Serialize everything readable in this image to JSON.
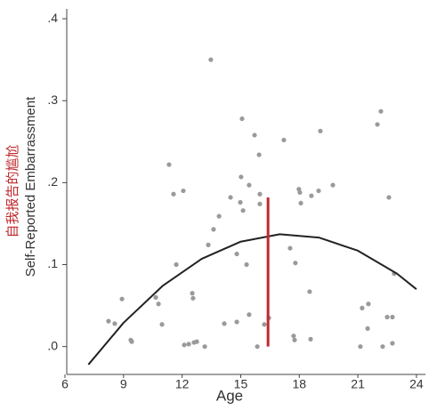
{
  "chart_data": {
    "type": "scatter",
    "x_label": "Age",
    "y_label": "Self-Reported Embarrassment",
    "annotation": "自我报告的尴尬",
    "color": "#9a9a9a",
    "x": [
      8.23,
      8.55,
      8.92,
      9.42,
      9.37,
      10.65,
      10.79,
      10.97,
      11.33,
      11.56,
      11.7,
      12.06,
      12.11,
      12.34,
      12.52,
      12.56,
      12.61,
      12.75,
      13.16,
      13.34,
      13.47,
      13.61,
      13.89,
      14.16,
      14.48,
      14.8,
      14.8,
      14.98,
      15.07,
      15.02,
      15.12,
      15.3,
      15.43,
      15.43,
      15.71,
      15.85,
      15.94,
      15.98,
      15.98,
      16.21,
      16.44,
      17.21,
      17.53,
      17.71,
      17.76,
      17.8,
      17.98,
      18.03,
      18.08,
      18.53,
      18.58,
      18.62,
      18.99,
      19.08,
      19.72,
      21.13,
      21.22,
      21.5,
      21.54,
      22.0,
      22.18,
      22.27,
      22.5,
      22.59,
      22.77,
      22.77,
      22.86
    ],
    "values": [
      0.031,
      0.028,
      0.058,
      0.006,
      0.008,
      0.06,
      0.052,
      0.027,
      0.222,
      0.186,
      0.1,
      0.19,
      0.002,
      0.003,
      0.065,
      0.059,
      0.005,
      0.006,
      0.0,
      0.124,
      0.35,
      0.143,
      0.159,
      0.028,
      0.182,
      0.03,
      0.113,
      0.176,
      0.278,
      0.207,
      0.166,
      0.1,
      0.197,
      0.039,
      0.258,
      0.0,
      0.234,
      0.186,
      0.174,
      0.027,
      0.035,
      0.252,
      0.12,
      0.013,
      0.008,
      0.102,
      0.192,
      0.188,
      0.175,
      0.067,
      0.009,
      0.184,
      0.19,
      0.263,
      0.197,
      0.0,
      0.047,
      0.022,
      0.052,
      0.271,
      0.287,
      0.0,
      0.036,
      0.182,
      0.036,
      0.004,
      0.089
    ],
    "fit": {
      "color": "#222222",
      "x": [
        7.2,
        9,
        11,
        13,
        15,
        17,
        19,
        21,
        23,
        24
      ],
      "values": [
        -0.022,
        0.029,
        0.074,
        0.107,
        0.128,
        0.137,
        0.133,
        0.117,
        0.089,
        0.07
      ]
    },
    "reference_line": {
      "color": "#c0282d",
      "x": 16.4,
      "y": [
        0.0,
        0.182
      ]
    },
    "xlim": [
      6,
      24.46
    ],
    "ylim": [
      -0.034,
      0.412
    ],
    "xticks": [
      6,
      9,
      12,
      15,
      18,
      21,
      24
    ],
    "yticks": [
      {
        "value": 0.0,
        "label": ".0"
      },
      {
        "value": 0.1,
        "label": ".1"
      },
      {
        "value": 0.2,
        "label": ".2"
      },
      {
        "value": 0.3,
        "label": ".3"
      },
      {
        "value": 0.4,
        "label": ".4"
      }
    ]
  }
}
